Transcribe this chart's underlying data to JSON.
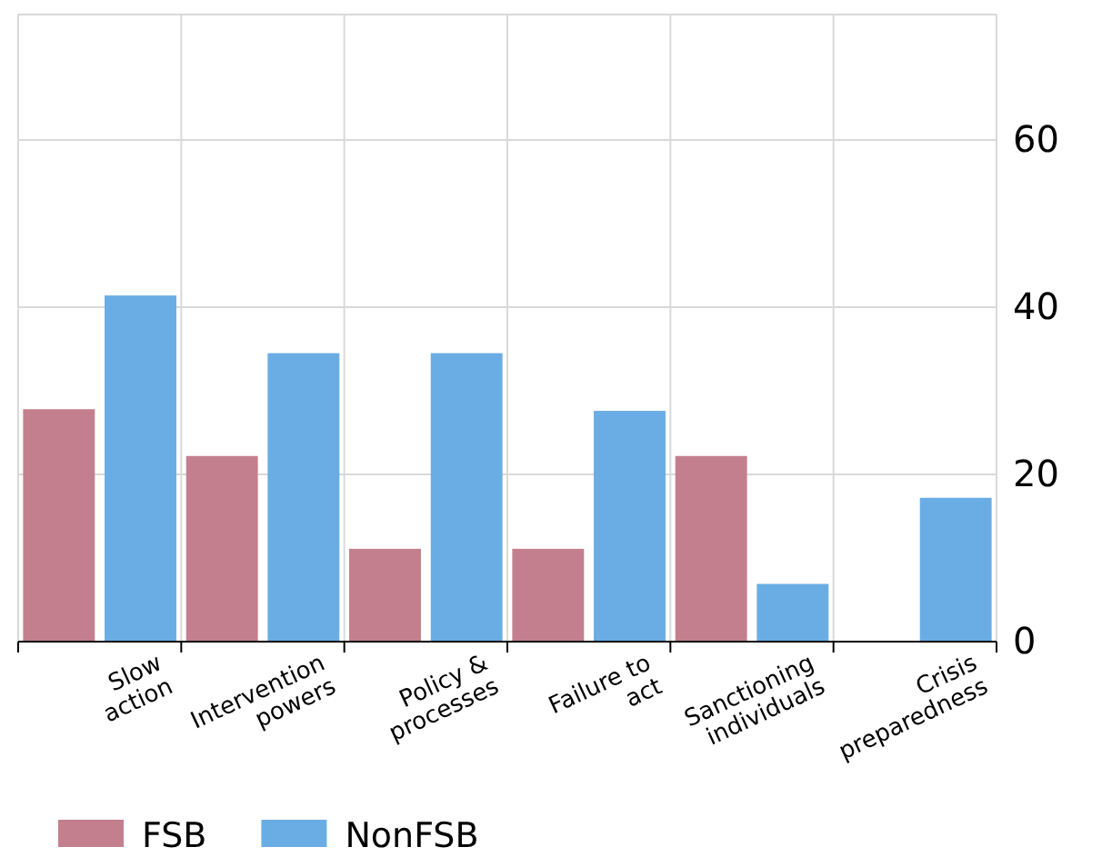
{
  "chart_data": {
    "type": "bar",
    "categories": [
      "Slow action",
      "Intervention powers",
      "Policy & processes",
      "Failure to act",
      "Sanctioning individuals",
      "Crisis preparedness"
    ],
    "series": [
      {
        "name": "FSB",
        "color": "#c47f8e",
        "values": [
          27.8,
          22.2,
          11.1,
          11.1,
          22.2,
          0
        ]
      },
      {
        "name": "NonFSB",
        "color": "#6aade4",
        "values": [
          41.4,
          34.5,
          34.5,
          27.6,
          6.9,
          17.2
        ]
      }
    ],
    "ylim": [
      0,
      75
    ],
    "yticks": [
      0,
      20,
      40,
      60
    ],
    "grid": true,
    "legend": "bottom left"
  }
}
